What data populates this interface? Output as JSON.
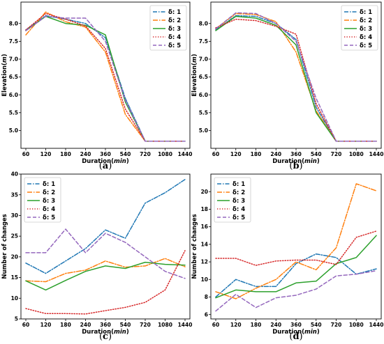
{
  "chart_data": [
    {
      "type": "line",
      "panel_label": "(a)",
      "categories": [
        "60",
        "120",
        "180",
        "240",
        "360",
        "540",
        "720",
        "1080",
        "1440"
      ],
      "xlabel": "Duration(min)",
      "ylabel": "Elevation(m)",
      "ylim": [
        4.5,
        8.6
      ],
      "yticks": [
        "5.0",
        "5.5",
        "6.0",
        "6.5",
        "7.0",
        "7.5",
        "8.0"
      ],
      "grid": false,
      "legend_position": "top-right",
      "series": [
        {
          "name": "δ: 1",
          "values": [
            7.82,
            8.22,
            8.12,
            8.0,
            7.6,
            5.9,
            4.7,
            4.7,
            4.7
          ]
        },
        {
          "name": "δ: 2",
          "values": [
            7.68,
            8.32,
            8.05,
            7.9,
            7.2,
            5.45,
            4.7,
            4.7,
            4.7
          ]
        },
        {
          "name": "δ: 3",
          "values": [
            7.8,
            8.2,
            8.0,
            7.95,
            7.68,
            5.8,
            4.7,
            4.7,
            4.7
          ]
        },
        {
          "name": "δ: 4",
          "values": [
            7.82,
            8.28,
            8.12,
            7.93,
            7.3,
            5.6,
            4.7,
            4.7,
            4.7
          ]
        },
        {
          "name": "δ: 5",
          "values": [
            7.8,
            8.2,
            8.15,
            8.15,
            7.5,
            5.85,
            4.7,
            4.7,
            4.7
          ]
        }
      ],
      "colors": [
        "#1f77b4",
        "#ff7f0e",
        "#2ca02c",
        "#d62728",
        "#9467bd"
      ]
    },
    {
      "type": "line",
      "panel_label": "(b)",
      "categories": [
        "60",
        "120",
        "180",
        "240",
        "360",
        "540",
        "720",
        "1080",
        "1440"
      ],
      "xlabel": "Duration(min)",
      "ylabel": "Elevation(m)",
      "ylim": [
        4.5,
        8.6
      ],
      "yticks": [
        "5.0",
        "5.5",
        "6.0",
        "6.5",
        "7.0",
        "7.5",
        "8.0"
      ],
      "grid": false,
      "legend_position": "top-right",
      "series": [
        {
          "name": "δ: 1",
          "values": [
            7.82,
            8.22,
            8.2,
            8.0,
            7.55,
            5.65,
            4.7,
            4.7,
            4.7
          ]
        },
        {
          "name": "δ: 2",
          "values": [
            7.85,
            8.28,
            8.25,
            8.05,
            7.2,
            5.55,
            4.7,
            4.7,
            4.7
          ]
        },
        {
          "name": "δ: 3",
          "values": [
            7.8,
            8.2,
            8.15,
            7.95,
            7.4,
            5.5,
            4.7,
            4.7,
            4.7
          ]
        },
        {
          "name": "δ: 4",
          "values": [
            7.88,
            8.12,
            8.08,
            7.92,
            7.7,
            5.75,
            4.7,
            4.7,
            4.7
          ]
        },
        {
          "name": "δ: 5",
          "values": [
            7.85,
            8.3,
            8.28,
            8.0,
            7.5,
            5.9,
            4.7,
            4.7,
            4.7
          ]
        }
      ],
      "colors": [
        "#1f77b4",
        "#ff7f0e",
        "#2ca02c",
        "#d62728",
        "#9467bd"
      ]
    },
    {
      "type": "line",
      "panel_label": "(c)",
      "categories": [
        "60",
        "120",
        "180",
        "240",
        "360",
        "540",
        "720",
        "1080",
        "1440"
      ],
      "xlabel": "Duration(min)",
      "ylabel": "Number of changes",
      "ylim": [
        5,
        40
      ],
      "yticks": [
        "5",
        "10",
        "15",
        "20",
        "25",
        "30",
        "35",
        "40"
      ],
      "grid": false,
      "legend_position": "top-left",
      "series": [
        {
          "name": "δ: 1",
          "values": [
            18.5,
            16.0,
            19.0,
            22.0,
            26.5,
            24.5,
            33.0,
            35.5,
            38.7
          ]
        },
        {
          "name": "δ: 2",
          "values": [
            14.2,
            14.0,
            16.0,
            16.8,
            19.0,
            17.5,
            17.8,
            19.6,
            17.6
          ]
        },
        {
          "name": "δ: 3",
          "values": [
            14.2,
            12.0,
            14.3,
            16.5,
            17.8,
            17.2,
            18.7,
            18.2,
            18.0
          ]
        },
        {
          "name": "δ: 4",
          "values": [
            7.5,
            6.3,
            6.3,
            6.2,
            7.0,
            7.8,
            9.0,
            12.0,
            21.5
          ]
        },
        {
          "name": "δ: 5",
          "values": [
            21.0,
            21.0,
            26.7,
            21.0,
            25.7,
            23.5,
            20.0,
            16.5,
            14.8
          ]
        }
      ],
      "colors": [
        "#1f77b4",
        "#ff7f0e",
        "#2ca02c",
        "#d62728",
        "#9467bd"
      ]
    },
    {
      "type": "line",
      "panel_label": "(d)",
      "categories": [
        "60",
        "120",
        "180",
        "240",
        "360",
        "540",
        "720",
        "1080",
        "1440"
      ],
      "xlabel": "Duration(min)",
      "ylabel": "Number of changes",
      "ylim": [
        5.5,
        22
      ],
      "yticks": [
        "6",
        "8",
        "10",
        "12",
        "14",
        "16",
        "18",
        "20"
      ],
      "grid": false,
      "legend_position": "top-left",
      "series": [
        {
          "name": "δ: 1",
          "values": [
            8.0,
            10.0,
            9.2,
            9.2,
            11.8,
            12.9,
            12.5,
            10.6,
            11.2
          ]
        },
        {
          "name": "δ: 2",
          "values": [
            8.6,
            7.8,
            9.0,
            10.0,
            12.0,
            11.1,
            13.6,
            20.9,
            20.1
          ]
        },
        {
          "name": "δ: 3",
          "values": [
            7.9,
            8.8,
            8.6,
            8.6,
            9.6,
            9.8,
            11.8,
            12.5,
            15.0
          ]
        },
        {
          "name": "δ: 4",
          "values": [
            12.4,
            12.4,
            11.6,
            12.1,
            12.2,
            12.2,
            11.7,
            14.8,
            15.5
          ]
        },
        {
          "name": "δ: 5",
          "values": [
            6.4,
            8.3,
            6.8,
            7.9,
            8.2,
            8.9,
            10.4,
            10.6,
            11.0
          ]
        }
      ],
      "colors": [
        "#1f77b4",
        "#ff7f0e",
        "#2ca02c",
        "#d62728",
        "#9467bd"
      ]
    }
  ]
}
